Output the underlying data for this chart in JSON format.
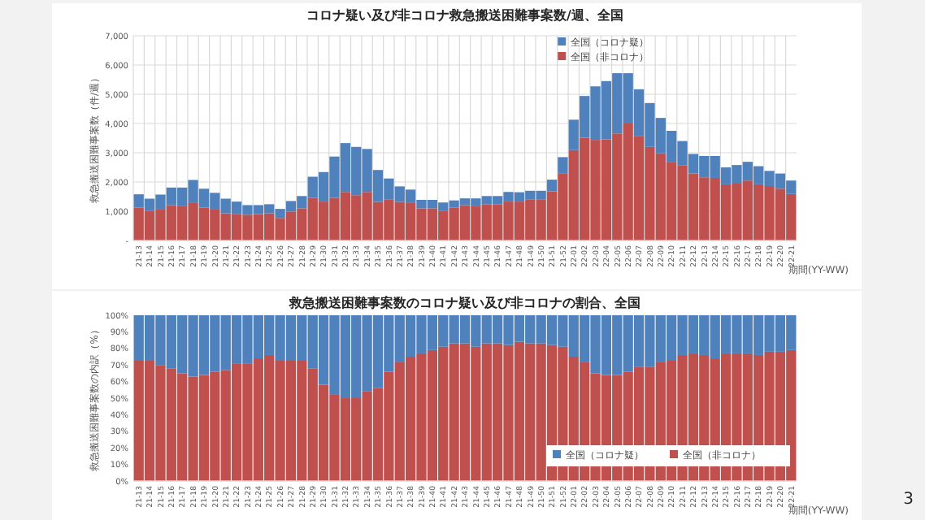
{
  "chart_data": [
    {
      "type": "bar",
      "title": "コロナ疑い及び非コロナ救急搬送困難事案数/週、全国",
      "xlabel": "期間(YY-WW)",
      "ylabel": "救急搬送困難事案数（件/週）",
      "stacked": true,
      "grid": true,
      "legend": "top right",
      "categories": [
        "21-13",
        "21-14",
        "21-15",
        "21-16",
        "21-17",
        "21-18",
        "21-19",
        "21-20",
        "21-21",
        "21-22",
        "21-23",
        "21-24",
        "21-25",
        "21-26",
        "21-27",
        "21-28",
        "21-29",
        "21-30",
        "21-31",
        "21-32",
        "21-33",
        "21-34",
        "21-35",
        "21-36",
        "21-37",
        "21-38",
        "21-39",
        "21-40",
        "21-41",
        "21-42",
        "21-43",
        "21-44",
        "21-45",
        "21-46",
        "21-47",
        "21-48",
        "21-49",
        "21-50",
        "21-51",
        "21-52",
        "22-01",
        "22-02",
        "22-03",
        "22-04",
        "22-05",
        "22-06",
        "22-07",
        "22-08",
        "22-09",
        "22-10",
        "22-11",
        "22-12",
        "22-13",
        "22-14",
        "22-15",
        "22-16",
        "22-17",
        "22-18",
        "22-19",
        "22-20",
        "22-21"
      ],
      "ylim": [
        0,
        7000
      ],
      "yticks": [
        {
          "value": 0,
          "label": "-"
        },
        {
          "value": 1000,
          "label": "1,000"
        },
        {
          "value": 2000,
          "label": "2,000"
        },
        {
          "value": 3000,
          "label": "3,000"
        },
        {
          "value": 4000,
          "label": "4,000"
        },
        {
          "value": 5000,
          "label": "5,000"
        },
        {
          "value": 6000,
          "label": "6,000"
        },
        {
          "value": 7000,
          "label": "7,000"
        }
      ],
      "series": [
        {
          "name": "全国（非コロナ）",
          "color": "#c0504d",
          "values": [
            1120,
            1020,
            1080,
            1210,
            1190,
            1280,
            1120,
            1080,
            930,
            910,
            880,
            900,
            930,
            770,
            990,
            1100,
            1460,
            1330,
            1460,
            1660,
            1550,
            1660,
            1320,
            1410,
            1320,
            1280,
            1100,
            1100,
            1020,
            1130,
            1210,
            1190,
            1240,
            1240,
            1330,
            1330,
            1410,
            1410,
            1680,
            2300,
            3090,
            3510,
            3440,
            3460,
            3660,
            4000,
            3560,
            3200,
            2980,
            2690,
            2560,
            2290,
            2160,
            2140,
            1920,
            1970,
            2050,
            1920,
            1860,
            1770,
            1590
          ]
        },
        {
          "name": "全国（コロナ疑）",
          "color": "#4f81bd",
          "values": [
            460,
            410,
            490,
            600,
            620,
            790,
            650,
            550,
            500,
            420,
            330,
            310,
            310,
            310,
            360,
            420,
            720,
            1010,
            1410,
            1670,
            1650,
            1470,
            1090,
            710,
            530,
            460,
            290,
            290,
            280,
            240,
            230,
            250,
            280,
            280,
            330,
            320,
            290,
            290,
            400,
            550,
            1040,
            1430,
            1830,
            1990,
            2060,
            1720,
            1610,
            1500,
            1210,
            1060,
            840,
            670,
            730,
            750,
            580,
            610,
            640,
            620,
            520,
            520,
            460
          ]
        }
      ]
    },
    {
      "type": "bar",
      "title": "救急搬送困難事案数のコロナ疑い及び非コロナの割合、全国",
      "xlabel": "期間(YY-WW)",
      "ylabel": "救急搬送困難事案数の内訳（%）",
      "stacked": true,
      "legend": "bottom right",
      "categories": [
        "21-13",
        "21-14",
        "21-15",
        "21-16",
        "21-17",
        "21-18",
        "21-19",
        "21-20",
        "21-21",
        "21-22",
        "21-23",
        "21-24",
        "21-25",
        "21-26",
        "21-27",
        "21-28",
        "21-29",
        "21-30",
        "21-31",
        "21-32",
        "21-33",
        "21-34",
        "21-35",
        "21-36",
        "21-37",
        "21-38",
        "21-39",
        "21-40",
        "21-41",
        "21-42",
        "21-43",
        "21-44",
        "21-45",
        "21-46",
        "21-47",
        "21-48",
        "21-49",
        "21-50",
        "21-51",
        "21-52",
        "22-01",
        "22-02",
        "22-03",
        "22-04",
        "22-05",
        "22-06",
        "22-07",
        "22-08",
        "22-09",
        "22-10",
        "22-11",
        "22-12",
        "22-13",
        "22-14",
        "22-15",
        "22-16",
        "22-17",
        "22-18",
        "22-19",
        "22-20",
        "22-21"
      ],
      "ylim": [
        0,
        100
      ],
      "yticks": [
        {
          "value": 0,
          "label": "0%"
        },
        {
          "value": 10,
          "label": "10%"
        },
        {
          "value": 20,
          "label": "20%"
        },
        {
          "value": 30,
          "label": "30%"
        },
        {
          "value": 40,
          "label": "40%"
        },
        {
          "value": 50,
          "label": "50%"
        },
        {
          "value": 60,
          "label": "60%"
        },
        {
          "value": 70,
          "label": "70%"
        },
        {
          "value": 80,
          "label": "80%"
        },
        {
          "value": 90,
          "label": "90%"
        },
        {
          "value": 100,
          "label": "100%"
        }
      ],
      "annotations": [
        "3"
      ],
      "series": [
        {
          "name": "全国（非コロナ）",
          "color": "#c0504d",
          "values": [
            73,
            73,
            70,
            68,
            65,
            63,
            64,
            66,
            67,
            71,
            71,
            74,
            76,
            73,
            73,
            73,
            68,
            58,
            52,
            50,
            50,
            54,
            56,
            66,
            72,
            75,
            77,
            79,
            81,
            83,
            83,
            81,
            83,
            83,
            82,
            84,
            83,
            83,
            82,
            81,
            75,
            72,
            65,
            64,
            64,
            66,
            69,
            69,
            72,
            73,
            76,
            77,
            76,
            74,
            77,
            77,
            77,
            76,
            78,
            78,
            79
          ]
        },
        {
          "name": "全国（コロナ疑）",
          "color": "#4f81bd",
          "values": [
            27,
            27,
            30,
            32,
            35,
            37,
            36,
            34,
            33,
            29,
            29,
            26,
            24,
            27,
            27,
            27,
            32,
            42,
            48,
            50,
            50,
            46,
            44,
            34,
            28,
            25,
            23,
            21,
            19,
            17,
            17,
            19,
            17,
            17,
            18,
            16,
            17,
            17,
            18,
            19,
            25,
            28,
            35,
            36,
            36,
            34,
            31,
            31,
            28,
            27,
            24,
            23,
            24,
            26,
            23,
            23,
            23,
            24,
            22,
            22,
            21
          ]
        }
      ]
    }
  ]
}
